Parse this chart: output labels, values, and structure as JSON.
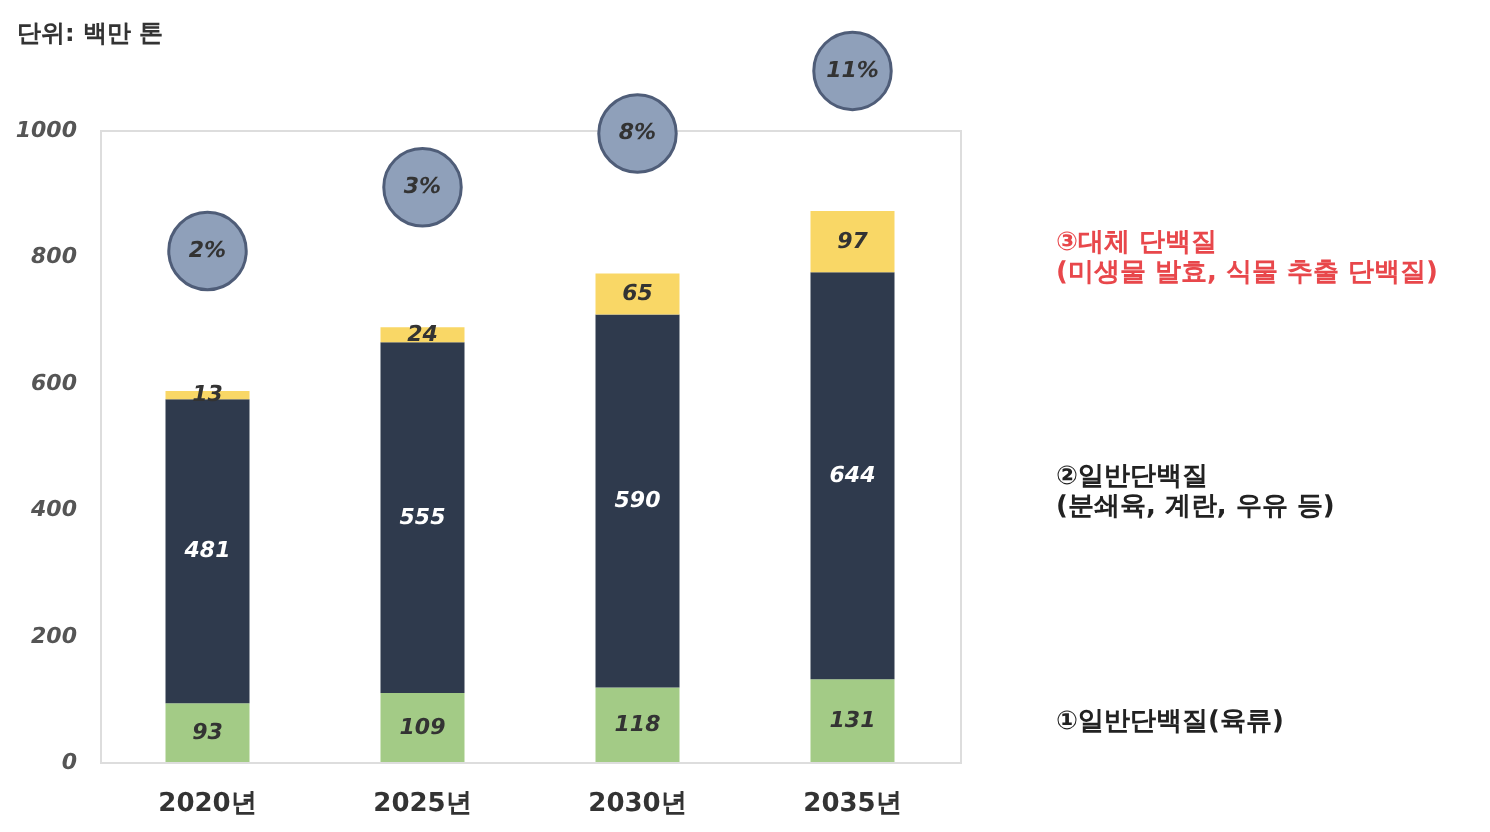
{
  "chart_data": {
    "type": "bar",
    "stacked": true,
    "ylabel": "단위: 백만 톤",
    "categories": [
      "2020년",
      "2025년",
      "2030년",
      "2035년"
    ],
    "series": [
      {
        "name": "①일반단백질(육류)",
        "color": "#a3cb86",
        "values": [
          93,
          109,
          118,
          131
        ]
      },
      {
        "name": "②일반단백질\n(분쇄육, 계란, 우유 등)",
        "color": "#2f3a4d",
        "values": [
          481,
          555,
          590,
          644
        ]
      },
      {
        "name": "③대체 단백질\n(미생물 발효, 식물 추출 단백질)",
        "color": "#f9d766",
        "values": [
          13,
          24,
          65,
          97
        ]
      }
    ],
    "ylim": [
      0,
      1000
    ],
    "yticks": [
      0,
      200,
      400,
      600,
      800,
      1000
    ],
    "grid": false,
    "data_labels": true,
    "legend": "right",
    "annotations": [
      "2%",
      "3%",
      "8%",
      "11%"
    ]
  }
}
